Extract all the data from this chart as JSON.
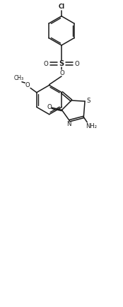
{
  "bg": "#ffffff",
  "lc": "#1a1a1a",
  "lw": 1.1,
  "fw": 1.74,
  "fh": 4.34,
  "dpi": 100,
  "xlim": [
    0,
    8
  ],
  "ylim": [
    0,
    20
  ]
}
